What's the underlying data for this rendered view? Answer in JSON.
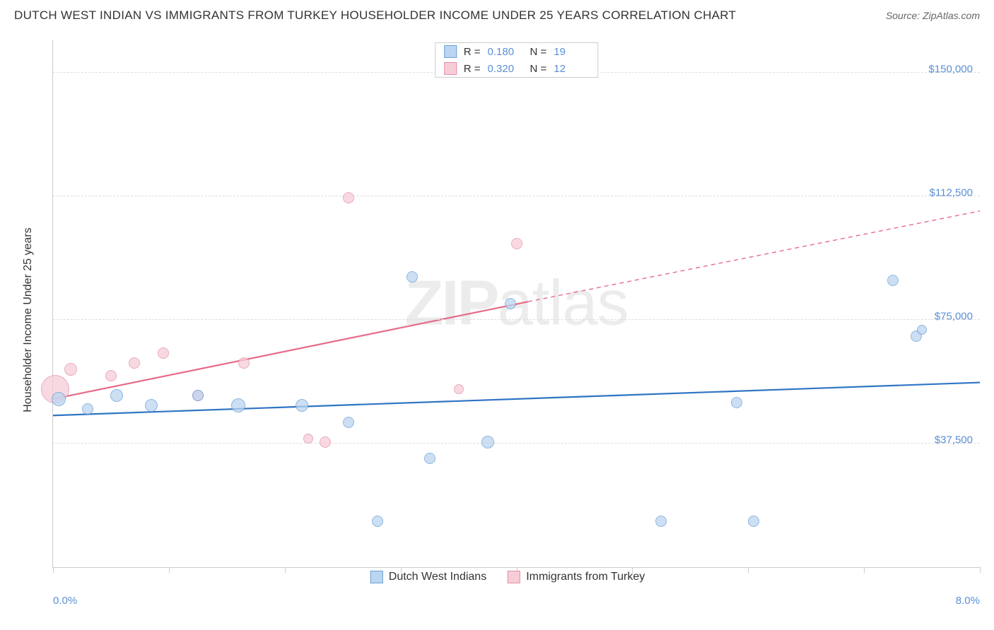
{
  "header": {
    "title": "DUTCH WEST INDIAN VS IMMIGRANTS FROM TURKEY HOUSEHOLDER INCOME UNDER 25 YEARS CORRELATION CHART",
    "source_prefix": "Source: ",
    "source_site": "ZipAtlas.com"
  },
  "watermark": {
    "part1": "ZIP",
    "part2": "atlas"
  },
  "axes": {
    "y_title": "Householder Income Under 25 years",
    "x_min_label": "0.0%",
    "x_max_label": "8.0%",
    "xlim": [
      0,
      8
    ],
    "ylim": [
      0,
      160000
    ],
    "y_gridlines": [
      {
        "value": 37500,
        "label": "$37,500"
      },
      {
        "value": 75000,
        "label": "$75,000"
      },
      {
        "value": 112500,
        "label": "$112,500"
      },
      {
        "value": 150000,
        "label": "$150,000"
      }
    ],
    "x_ticks": [
      0,
      1,
      2,
      3,
      4,
      5,
      6,
      7,
      8
    ],
    "grid_color": "#dddddd",
    "axis_color": "#cccccc"
  },
  "stats_legend": {
    "rows": [
      {
        "swatch_fill": "#bcd5f0",
        "swatch_border": "#6b9fd8",
        "r_label": "R  =",
        "r_value": "0.180",
        "n_label": "N  =",
        "n_value": "19"
      },
      {
        "swatch_fill": "#f6cdd7",
        "swatch_border": "#e58fa6",
        "r_label": "R  =",
        "r_value": "0.320",
        "n_label": "N  =",
        "n_value": "12"
      }
    ]
  },
  "bottom_legend": {
    "items": [
      {
        "swatch_fill": "#bcd5f0",
        "swatch_border": "#6b9fd8",
        "label": "Dutch West Indians"
      },
      {
        "swatch_fill": "#f6cdd7",
        "swatch_border": "#e58fa6",
        "label": "Immigrants from Turkey"
      }
    ]
  },
  "series": {
    "blue": {
      "fill": "#bcd5f0",
      "border": "#6b9fd8",
      "opacity": 0.75,
      "points": [
        {
          "x": 0.05,
          "y": 51000,
          "r": 10
        },
        {
          "x": 0.3,
          "y": 48000,
          "r": 8
        },
        {
          "x": 0.55,
          "y": 52000,
          "r": 9
        },
        {
          "x": 0.85,
          "y": 49000,
          "r": 9
        },
        {
          "x": 1.25,
          "y": 52000,
          "r": 8
        },
        {
          "x": 1.6,
          "y": 49000,
          "r": 10
        },
        {
          "x": 2.15,
          "y": 49000,
          "r": 9
        },
        {
          "x": 2.55,
          "y": 44000,
          "r": 8
        },
        {
          "x": 2.8,
          "y": 14000,
          "r": 8
        },
        {
          "x": 3.1,
          "y": 88000,
          "r": 8
        },
        {
          "x": 3.25,
          "y": 33000,
          "r": 8
        },
        {
          "x": 3.75,
          "y": 38000,
          "r": 9
        },
        {
          "x": 3.95,
          "y": 80000,
          "r": 8
        },
        {
          "x": 5.25,
          "y": 14000,
          "r": 8
        },
        {
          "x": 5.9,
          "y": 50000,
          "r": 8
        },
        {
          "x": 6.05,
          "y": 14000,
          "r": 8
        },
        {
          "x": 7.25,
          "y": 87000,
          "r": 8
        },
        {
          "x": 7.45,
          "y": 70000,
          "r": 8
        },
        {
          "x": 7.5,
          "y": 72000,
          "r": 7
        }
      ],
      "trend": {
        "x1": 0,
        "y1": 46000,
        "x2": 8,
        "y2": 56000,
        "color": "#2f74c4",
        "width": 2.2,
        "dash": ""
      }
    },
    "pink": {
      "fill": "#f6cdd7",
      "border": "#e58fa6",
      "opacity": 0.75,
      "points": [
        {
          "x": 0.02,
          "y": 54000,
          "r": 20
        },
        {
          "x": 0.15,
          "y": 60000,
          "r": 9
        },
        {
          "x": 0.5,
          "y": 58000,
          "r": 8
        },
        {
          "x": 0.7,
          "y": 62000,
          "r": 8
        },
        {
          "x": 0.95,
          "y": 65000,
          "r": 8
        },
        {
          "x": 1.25,
          "y": 52000,
          "r": 8
        },
        {
          "x": 1.65,
          "y": 62000,
          "r": 8
        },
        {
          "x": 2.2,
          "y": 39000,
          "r": 7
        },
        {
          "x": 2.35,
          "y": 38000,
          "r": 8
        },
        {
          "x": 2.55,
          "y": 112000,
          "r": 8
        },
        {
          "x": 3.5,
          "y": 54000,
          "r": 7
        },
        {
          "x": 4.0,
          "y": 98000,
          "r": 8
        }
      ],
      "trend_solid": {
        "x1": 0,
        "y1": 51000,
        "x2": 4.1,
        "y2": 80500,
        "color": "#e66b88",
        "width": 2.2,
        "dash": ""
      },
      "trend_dash": {
        "x1": 4.1,
        "y1": 80500,
        "x2": 8,
        "y2": 108000,
        "color": "#e66b88",
        "width": 1.4,
        "dash": "6 5"
      }
    }
  },
  "colors": {
    "text_primary": "#333333",
    "text_axis": "#5b8fd6",
    "background": "#ffffff"
  }
}
